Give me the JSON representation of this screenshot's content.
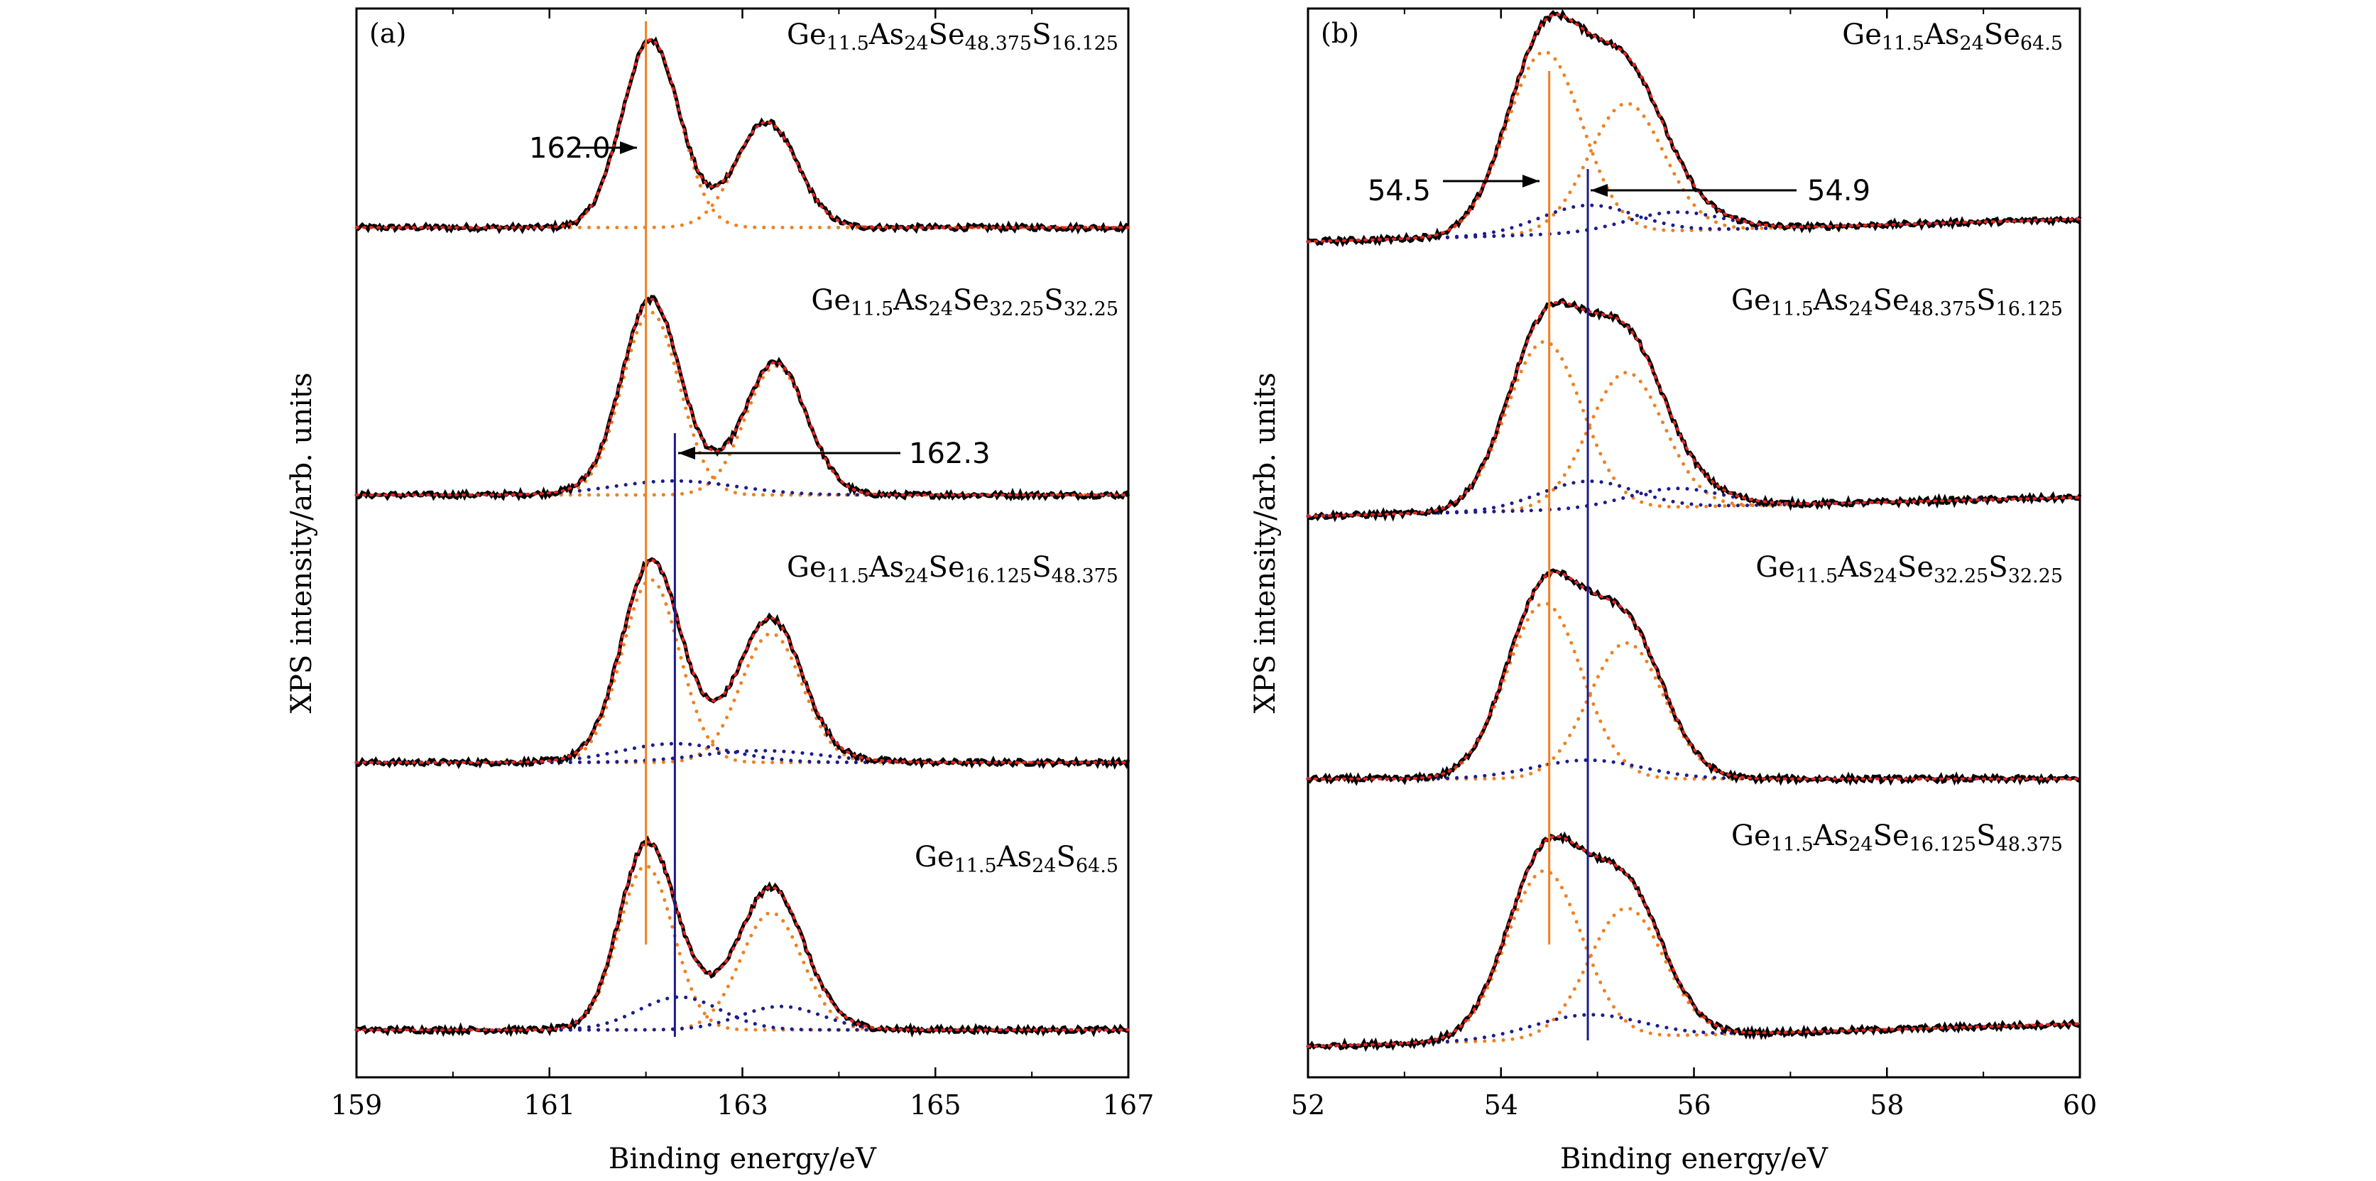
{
  "chart_data": [
    {
      "type": "line",
      "panel": "(a)",
      "xlabel": "Binding energy/eV",
      "ylabel": "XPS intensity/arb. units",
      "xlim": [
        159,
        167
      ],
      "xticks": [
        "159",
        "161",
        "163",
        "165",
        "167"
      ],
      "colors": {
        "measured": "#000000",
        "fit": "#e8261f",
        "component_main": "#ee8122",
        "component_secondary": "#1c1c8c"
      },
      "series": [
        {
          "name": "Ge11.5As24Se48.375S16.125",
          "label_parts": [
            "Ge",
            "11.5",
            "As",
            "24",
            "Se",
            "48.375",
            "S",
            "16.125"
          ],
          "baseline": 0.12,
          "background_slope": 0.0,
          "peaks_main": [
            {
              "center": 162.05,
              "height": 0.8,
              "width": 0.42
            },
            {
              "center": 163.25,
              "height": 0.45,
              "width": 0.45
            }
          ],
          "peaks_secondary": []
        },
        {
          "name": "Ge11.5As24Se32.25S32.25",
          "label_parts": [
            "Ge",
            "11.5",
            "As",
            "24",
            "Se",
            "32.25",
            "S",
            "32.25"
          ],
          "baseline": 0.1,
          "background_slope": 0.0,
          "peaks_main": [
            {
              "center": 162.05,
              "height": 0.78,
              "width": 0.42
            },
            {
              "center": 163.35,
              "height": 0.55,
              "width": 0.45
            }
          ],
          "peaks_secondary": [
            {
              "center": 162.3,
              "height": 0.06,
              "width": 0.9
            }
          ]
        },
        {
          "name": "Ge11.5As24Se16.125S48.375",
          "label_parts": [
            "Ge",
            "11.5",
            "As",
            "24",
            "Se",
            "16.125",
            "S",
            "48.375"
          ],
          "baseline": 0.08,
          "background_slope": 0.0,
          "peaks_main": [
            {
              "center": 162.05,
              "height": 0.78,
              "width": 0.42
            },
            {
              "center": 163.3,
              "height": 0.55,
              "width": 0.45
            }
          ],
          "peaks_secondary": [
            {
              "center": 162.3,
              "height": 0.08,
              "width": 0.8
            },
            {
              "center": 163.2,
              "height": 0.05,
              "width": 0.9
            }
          ]
        },
        {
          "name": "Ge11.5As24S64.5",
          "label_parts": [
            "Ge",
            "11.5",
            "As",
            "24",
            "S",
            "64.5"
          ],
          "baseline": 0.06,
          "background_slope": 0.0,
          "peaks_main": [
            {
              "center": 162.0,
              "height": 0.7,
              "width": 0.4
            },
            {
              "center": 163.3,
              "height": 0.5,
              "width": 0.45
            }
          ],
          "peaks_secondary": [
            {
              "center": 162.35,
              "height": 0.14,
              "width": 0.6
            },
            {
              "center": 163.4,
              "height": 0.1,
              "width": 0.6
            }
          ]
        }
      ],
      "reference_lines": [
        {
          "x": 162.0,
          "color": "#ee8122"
        },
        {
          "x": 162.3,
          "color": "#1c1c8c"
        }
      ],
      "annotations": [
        "162.0",
        "162.3"
      ]
    },
    {
      "type": "line",
      "panel": "(b)",
      "xlabel": "Binding energy/eV",
      "ylabel": "XPS intensity/arb. units",
      "xlim": [
        52,
        60
      ],
      "xticks": [
        "52",
        "54",
        "56",
        "58",
        "60"
      ],
      "colors": {
        "measured": "#000000",
        "fit": "#e8261f",
        "component_main": "#ee8122",
        "component_secondary": "#1c1c8c"
      },
      "series": [
        {
          "name": "Ge11.5As24Se64.5",
          "label_parts": [
            "Ge",
            "11.5",
            "As",
            "24",
            "Se",
            "64.5"
          ],
          "baseline": 0.06,
          "background_slope": 0.012,
          "peaks_main": [
            {
              "center": 54.45,
              "height": 0.78,
              "width": 0.55
            },
            {
              "center": 55.3,
              "height": 0.55,
              "width": 0.55
            }
          ],
          "peaks_secondary": [
            {
              "center": 54.9,
              "height": 0.12,
              "width": 0.7
            },
            {
              "center": 55.8,
              "height": 0.08,
              "width": 0.7
            }
          ]
        },
        {
          "name": "Ge11.5As24Se48.375S16.125",
          "label_parts": [
            "Ge",
            "11.5",
            "As",
            "24",
            "Se",
            "48.375",
            "S",
            "16.125"
          ],
          "baseline": 0.04,
          "background_slope": 0.01,
          "peaks_main": [
            {
              "center": 54.45,
              "height": 0.72,
              "width": 0.55
            },
            {
              "center": 55.3,
              "height": 0.58,
              "width": 0.55
            }
          ],
          "peaks_secondary": [
            {
              "center": 54.9,
              "height": 0.12,
              "width": 0.7
            },
            {
              "center": 55.8,
              "height": 0.08,
              "width": 0.7
            }
          ]
        },
        {
          "name": "Ge11.5As24Se32.25S32.25",
          "label_parts": [
            "Ge",
            "11.5",
            "As",
            "24",
            "Se",
            "32.25",
            "S",
            "32.25"
          ],
          "baseline": 0.04,
          "background_slope": 0.0,
          "peaks_main": [
            {
              "center": 54.45,
              "height": 0.75,
              "width": 0.55
            },
            {
              "center": 55.3,
              "height": 0.58,
              "width": 0.55
            }
          ],
          "peaks_secondary": [
            {
              "center": 54.9,
              "height": 0.08,
              "width": 0.8
            }
          ]
        },
        {
          "name": "Ge11.5As24Se16.125S48.375",
          "label_parts": [
            "Ge",
            "11.5",
            "As",
            "24",
            "Se",
            "16.125",
            "S",
            "48.375"
          ],
          "baseline": 0.02,
          "background_slope": 0.012,
          "peaks_main": [
            {
              "center": 54.45,
              "height": 0.72,
              "width": 0.55
            },
            {
              "center": 55.3,
              "height": 0.55,
              "width": 0.55
            }
          ],
          "peaks_secondary": [
            {
              "center": 54.9,
              "height": 0.1,
              "width": 0.8
            }
          ]
        }
      ],
      "reference_lines": [
        {
          "x": 54.5,
          "color": "#ee8122"
        },
        {
          "x": 54.9,
          "color": "#1c1c8c"
        }
      ],
      "annotations": [
        "54.5",
        "54.9"
      ]
    }
  ]
}
